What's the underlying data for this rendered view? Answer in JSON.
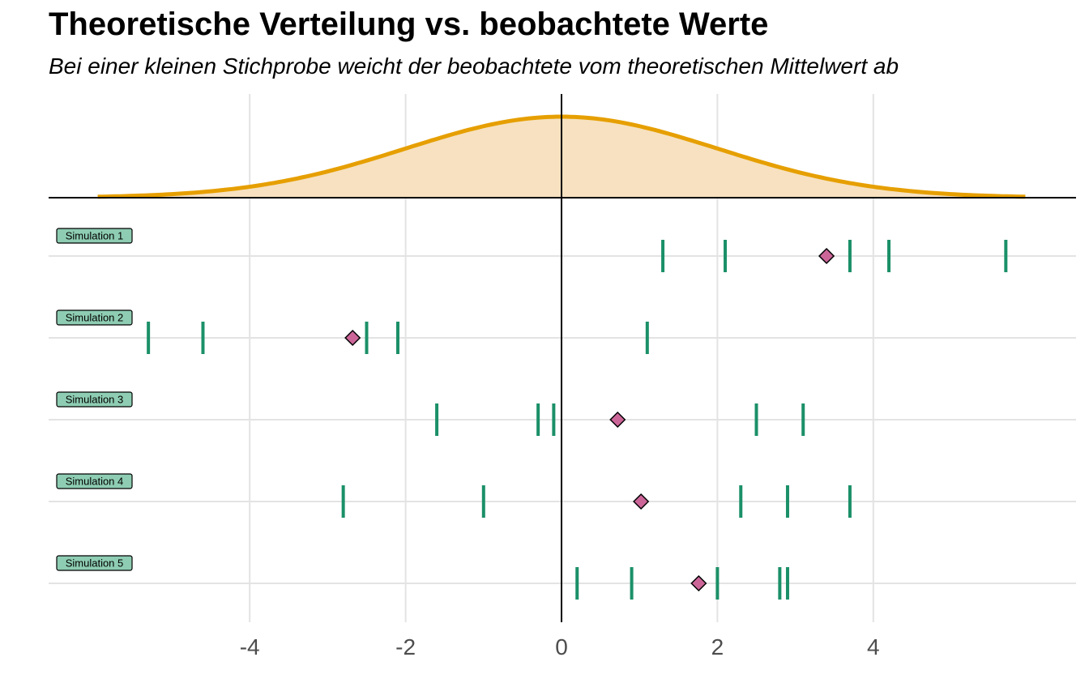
{
  "chart_data": {
    "type": "scatter",
    "title": "Theoretische Verteilung vs. beobachtete Werte",
    "subtitle": "Bei einer kleinen Stichprobe weicht der beobachtete vom theoretischen Mittelwert ab",
    "xlabel": "",
    "ylabel": "",
    "xlim": [
      -6.5,
      6.7
    ],
    "x_ticks": [
      -4,
      -2,
      0,
      2,
      4
    ],
    "grid": true,
    "density": {
      "distribution": "normal",
      "mean": 0,
      "sd": 2,
      "x_range": [
        -5.95,
        5.95
      ]
    },
    "simulations": [
      {
        "label": "Simulation 1",
        "observations": [
          1.3,
          2.1,
          3.7,
          4.2,
          5.7
        ],
        "observed_mean": 3.4
      },
      {
        "label": "Simulation 2",
        "observations": [
          -5.3,
          -4.6,
          -2.5,
          -2.1,
          1.1
        ],
        "observed_mean": -2.68
      },
      {
        "label": "Simulation 3",
        "observations": [
          -1.6,
          -0.3,
          -0.1,
          2.5,
          3.1
        ],
        "observed_mean": 0.72
      },
      {
        "label": "Simulation 4",
        "observations": [
          -2.8,
          -1.0,
          2.3,
          2.9,
          3.7
        ],
        "observed_mean": 1.02
      },
      {
        "label": "Simulation 5",
        "observations": [
          0.2,
          0.9,
          2.0,
          2.8,
          2.9
        ],
        "observed_mean": 1.76
      }
    ],
    "colors": {
      "density_line": "#E69F00",
      "density_fill": "#F7E1C0",
      "observation_tick": "#1B9068",
      "mean_marker": "#CC6699",
      "label_fill": "#8ECDB3",
      "grid": "#E3E3E3",
      "axis": "#000000"
    }
  }
}
